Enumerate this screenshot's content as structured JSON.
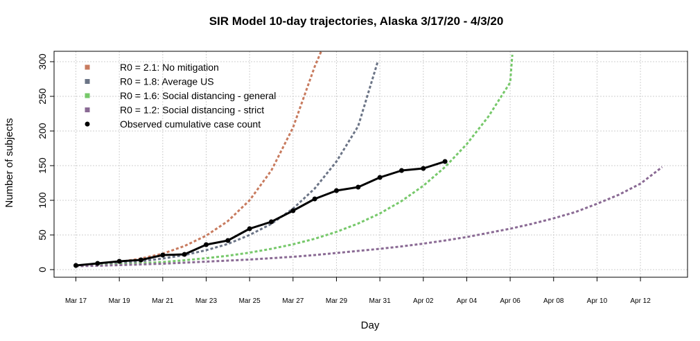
{
  "chart_data": {
    "type": "line",
    "title": "SIR Model 10-day trajectories, Alaska 3/17/20 - 4/3/20",
    "xlabel": "Day",
    "ylabel": "Number of subjects",
    "x_day_range": [
      0,
      27
    ],
    "ylim": [
      0,
      300
    ],
    "x_ticks": [
      {
        "day": 0,
        "label": "Mar 17"
      },
      {
        "day": 2,
        "label": "Mar 19"
      },
      {
        "day": 4,
        "label": "Mar 21"
      },
      {
        "day": 6,
        "label": "Mar 23"
      },
      {
        "day": 8,
        "label": "Mar 25"
      },
      {
        "day": 10,
        "label": "Mar 27"
      },
      {
        "day": 12,
        "label": "Mar 29"
      },
      {
        "day": 14,
        "label": "Mar 31"
      },
      {
        "day": 16,
        "label": "Apr 02"
      },
      {
        "day": 18,
        "label": "Apr 04"
      },
      {
        "day": 20,
        "label": "Apr 06"
      },
      {
        "day": 22,
        "label": "Apr 08"
      },
      {
        "day": 24,
        "label": "Apr 10"
      },
      {
        "day": 26,
        "label": "Apr 12"
      }
    ],
    "y_ticks": [
      0,
      50,
      100,
      150,
      200,
      250,
      300
    ],
    "grid": true,
    "legend_position": "top-left",
    "series": [
      {
        "name": "R0 = 2.1: No mitigation",
        "color": "#c87b5f",
        "style": "dashed",
        "x": [
          0,
          1,
          2,
          3,
          4,
          5,
          6,
          7,
          8,
          9,
          10,
          11,
          11.3
        ],
        "values": [
          5,
          8,
          11,
          16,
          23,
          34,
          49,
          70,
          100,
          143,
          205,
          293,
          315
        ]
      },
      {
        "name": "R0 = 1.8: Average US",
        "color": "#6b7486",
        "style": "dashed",
        "x": [
          0,
          1,
          2,
          3,
          4,
          5,
          6,
          7,
          8,
          9,
          10,
          11,
          12,
          13,
          13.9
        ],
        "values": [
          5,
          7,
          9,
          12,
          16,
          21,
          28,
          37,
          50,
          66,
          88,
          117,
          156,
          207,
          300
        ]
      },
      {
        "name": "R0 = 1.6: Social distancing - general",
        "color": "#76c86a",
        "style": "dashed",
        "x": [
          0,
          1,
          2,
          3,
          4,
          5,
          6,
          7,
          8,
          9,
          10,
          11,
          12,
          13,
          14,
          15,
          16,
          17,
          18,
          19,
          20,
          20.1
        ],
        "values": [
          5,
          6,
          7.5,
          9,
          11,
          13.5,
          16.5,
          20,
          24.5,
          30,
          36.5,
          44.5,
          54.5,
          66.5,
          81,
          99,
          121,
          148,
          181,
          221,
          270,
          310
        ]
      },
      {
        "name": "R0 = 1.2: Social distancing - strict",
        "color": "#8a6a94",
        "style": "dashed",
        "x": [
          0,
          1,
          2,
          3,
          4,
          5,
          6,
          7,
          8,
          9,
          10,
          11,
          12,
          13,
          14,
          15,
          16,
          17,
          18,
          19,
          20,
          21,
          22,
          23,
          24,
          25,
          26,
          27
        ],
        "values": [
          5,
          5.5,
          6.5,
          7.5,
          8.5,
          10,
          11.5,
          13,
          14.5,
          16.5,
          18.5,
          21,
          24,
          27,
          30,
          33.5,
          37.5,
          42,
          47,
          53,
          59,
          66,
          74,
          83,
          95,
          108,
          124,
          148
        ]
      },
      {
        "name": "Observed cumulative case count",
        "color": "#000000",
        "style": "solid-points",
        "x": [
          0,
          1,
          2,
          3,
          4,
          5,
          6,
          7,
          8,
          9,
          10,
          11,
          12,
          13,
          14,
          15,
          16,
          17
        ],
        "values": [
          6,
          9,
          12,
          14,
          21,
          22,
          36,
          42,
          59,
          69,
          85,
          102,
          114,
          119,
          133,
          143,
          146,
          156
        ]
      }
    ]
  }
}
